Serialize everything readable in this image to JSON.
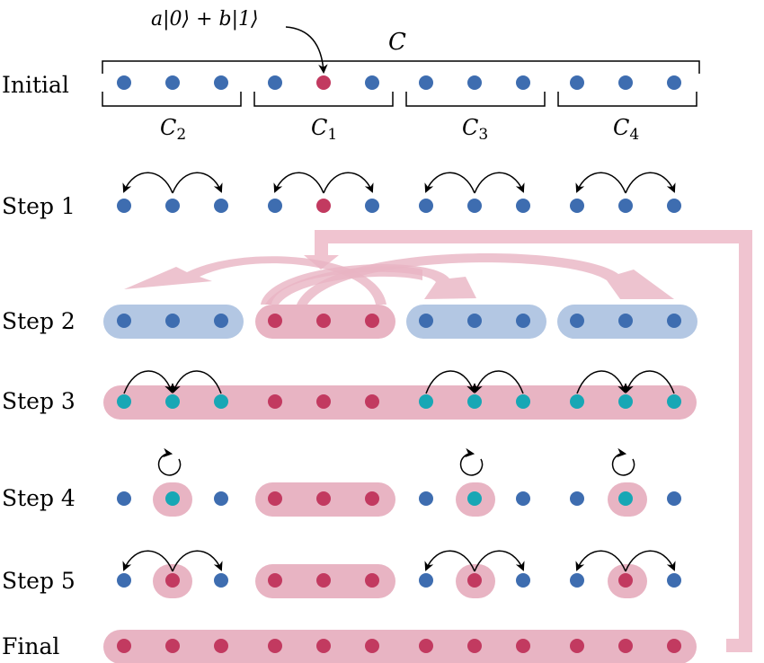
{
  "row_labels": [
    "Initial",
    "Step 1",
    "Step 2",
    "Step 3",
    "Step 4",
    "Step 5",
    "Final"
  ],
  "annotation_state": "a|0⟩ + b|1⟩",
  "brace_main_label": "C",
  "brace_labels": [
    {
      "base": "C",
      "sub": "2"
    },
    {
      "base": "C",
      "sub": "1"
    },
    {
      "base": "C",
      "sub": "3"
    },
    {
      "base": "C",
      "sub": "4"
    }
  ],
  "colors": {
    "qubit_blue": "#3e6db0",
    "qubit_red": "#c23a60",
    "qubit_teal": "#17a7b5",
    "highlight_blue": "#b3c7e3",
    "highlight_pink": "#e8b4c3",
    "feedback_pink": "#f0c4d0",
    "arrow": "#000000"
  }
}
